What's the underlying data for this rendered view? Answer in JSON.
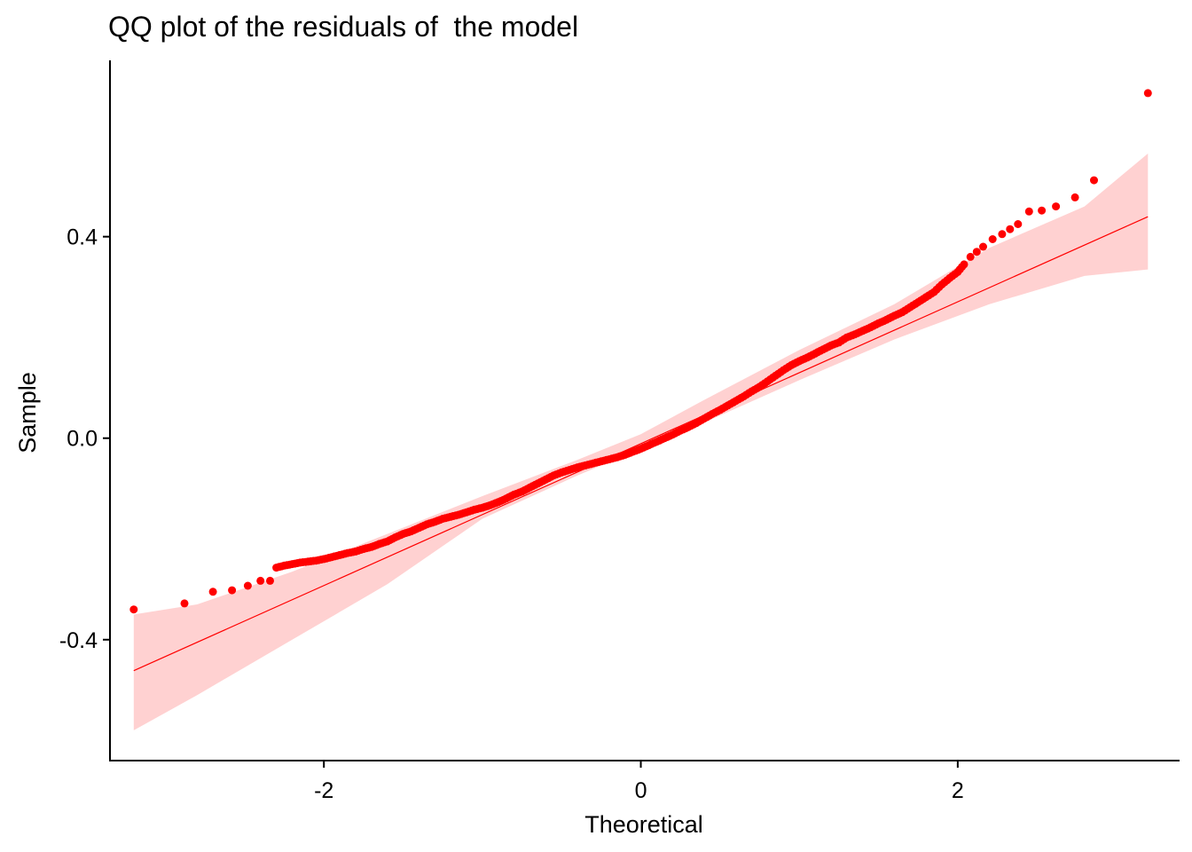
{
  "chart_data": {
    "type": "scatter",
    "title": "QQ plot of the residuals of  the model",
    "xlabel": "Theoretical",
    "ylabel": "Sample",
    "xlim": [
      -3.35,
      3.4
    ],
    "ylim": [
      -0.64,
      0.75
    ],
    "xticks": [
      -2,
      0,
      2
    ],
    "xtick_labels": [
      "-2",
      "0",
      "2"
    ],
    "yticks": [
      -0.4,
      0.0,
      0.4
    ],
    "ytick_labels": [
      "-0.4",
      "0.0",
      "0.4"
    ],
    "grid": false,
    "legend": "none",
    "colors": {
      "points": "#ff0000",
      "line": "#ff0000",
      "band": "#ffcccc"
    },
    "reference_line": {
      "slope": 0.1408,
      "intercept": -0.0109,
      "x_range": [
        -3.2,
        3.2
      ]
    },
    "confidence_band": {
      "x": [
        -3.2,
        -2.8,
        -2.2,
        -1.6,
        -1.0,
        -0.4,
        0.0,
        0.4,
        1.0,
        1.6,
        2.2,
        2.8,
        3.2
      ],
      "lower": [
        -0.58,
        -0.51,
        -0.4,
        -0.29,
        -0.16,
        -0.074,
        -0.021,
        0.031,
        0.115,
        0.196,
        0.266,
        0.322,
        0.335
      ],
      "upper": [
        -0.35,
        -0.33,
        -0.265,
        -0.19,
        -0.115,
        -0.043,
        0.008,
        0.076,
        0.175,
        0.266,
        0.378,
        0.46,
        0.565
      ]
    },
    "series": [
      {
        "x": [
          -3.2,
          -2.88,
          -2.7,
          -2.58,
          -2.48,
          -2.4,
          -2.34,
          -2.3,
          -2.25,
          -2.2,
          -2.15,
          -2.1,
          -2.05,
          -2.0,
          -1.95,
          -1.9,
          -1.85,
          -1.8,
          -1.75,
          -1.7,
          -1.65,
          -1.6,
          -1.55,
          -1.5,
          -1.45,
          -1.4,
          -1.35,
          -1.3,
          -1.25,
          -1.2,
          -1.15,
          -1.1,
          -1.05,
          -1.0,
          -0.95,
          -0.9,
          -0.85,
          -0.8,
          -0.75,
          -0.7,
          -0.65,
          -0.6,
          -0.55,
          -0.5,
          -0.45,
          -0.4,
          -0.35,
          -0.3,
          -0.25,
          -0.2,
          -0.15,
          -0.1,
          -0.05,
          0.0,
          0.05,
          0.1,
          0.15,
          0.2,
          0.25,
          0.3,
          0.35,
          0.4,
          0.45,
          0.5,
          0.55,
          0.6,
          0.65,
          0.7,
          0.75,
          0.8,
          0.85,
          0.9,
          0.95,
          1.0,
          1.05,
          1.1,
          1.15,
          1.2,
          1.25,
          1.3,
          1.35,
          1.4,
          1.45,
          1.5,
          1.55,
          1.6,
          1.65,
          1.7,
          1.75,
          1.8,
          1.85,
          1.9,
          1.95,
          2.0,
          2.04,
          2.08,
          2.12,
          2.16,
          2.22,
          2.28,
          2.33,
          2.38,
          2.45,
          2.53,
          2.62,
          2.74,
          2.86,
          3.2
        ],
        "y": [
          -0.34,
          -0.328,
          -0.305,
          -0.302,
          -0.293,
          -0.283,
          -0.283,
          -0.257,
          -0.253,
          -0.25,
          -0.247,
          -0.245,
          -0.243,
          -0.24,
          -0.236,
          -0.232,
          -0.228,
          -0.225,
          -0.22,
          -0.216,
          -0.21,
          -0.205,
          -0.197,
          -0.19,
          -0.185,
          -0.178,
          -0.171,
          -0.166,
          -0.16,
          -0.156,
          -0.152,
          -0.147,
          -0.142,
          -0.138,
          -0.133,
          -0.127,
          -0.12,
          -0.112,
          -0.106,
          -0.098,
          -0.09,
          -0.082,
          -0.074,
          -0.068,
          -0.063,
          -0.058,
          -0.054,
          -0.05,
          -0.046,
          -0.042,
          -0.038,
          -0.033,
          -0.027,
          -0.021,
          -0.014,
          -0.007,
          0.0,
          0.007,
          0.015,
          0.022,
          0.03,
          0.039,
          0.048,
          0.056,
          0.065,
          0.074,
          0.083,
          0.093,
          0.102,
          0.113,
          0.124,
          0.135,
          0.145,
          0.153,
          0.16,
          0.168,
          0.176,
          0.184,
          0.19,
          0.2,
          0.206,
          0.213,
          0.22,
          0.228,
          0.235,
          0.243,
          0.25,
          0.26,
          0.27,
          0.28,
          0.29,
          0.305,
          0.318,
          0.33,
          0.345,
          0.36,
          0.37,
          0.38,
          0.395,
          0.405,
          0.415,
          0.425,
          0.45,
          0.452,
          0.46,
          0.478,
          0.512,
          0.685
        ]
      }
    ]
  }
}
